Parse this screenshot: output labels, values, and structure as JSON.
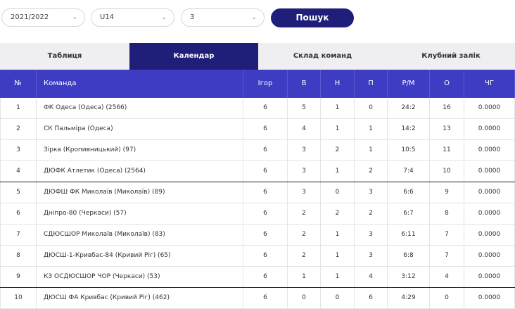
{
  "filters": {
    "season": "2021/2022",
    "age_group": "U14",
    "division": "3",
    "search_label": "Пошук"
  },
  "tabs": [
    {
      "label": "Таблиця",
      "active": false
    },
    {
      "label": "Календар",
      "active": true
    },
    {
      "label": "Склад команд",
      "active": false
    },
    {
      "label": "Клубний залік",
      "active": false
    }
  ],
  "table": {
    "columns": [
      "№",
      "Команда",
      "Ігор",
      "В",
      "Н",
      "П",
      "Р/М",
      "О",
      "ЧГ"
    ],
    "rows": [
      [
        "1",
        "ФК Одеса (Одеса) (2566)",
        "6",
        "5",
        "1",
        "0",
        "24:2",
        "16",
        "0.0000"
      ],
      [
        "2",
        "СК Пальміра (Одеса)",
        "6",
        "4",
        "1",
        "1",
        "14:2",
        "13",
        "0.0000"
      ],
      [
        "3",
        "Зірка (Кропивницький) (97)",
        "6",
        "3",
        "2",
        "1",
        "10:5",
        "11",
        "0.0000"
      ],
      [
        "4",
        "ДЮФК Атлетик (Одеса) (2564)",
        "6",
        "3",
        "1",
        "2",
        "7:4",
        "10",
        "0.0000"
      ],
      [
        "5",
        "ДЮФШ ФК Миколаїв (Миколаїв) (89)",
        "6",
        "3",
        "0",
        "3",
        "6:6",
        "9",
        "0.0000"
      ],
      [
        "6",
        "Дніпро-80 (Черкаси) (57)",
        "6",
        "2",
        "2",
        "2",
        "6:7",
        "8",
        "0.0000"
      ],
      [
        "7",
        "СДЮСШОР Миколаїв (Миколаїв) (83)",
        "6",
        "2",
        "1",
        "3",
        "6:11",
        "7",
        "0.0000"
      ],
      [
        "8",
        "ДЮСШ-1-Кривбас-84 (Кривий Ріг) (65)",
        "6",
        "2",
        "1",
        "3",
        "6:8",
        "7",
        "0.0000"
      ],
      [
        "9",
        "КЗ ОСДЮСШОР ЧОР (Черкаси) (53)",
        "6",
        "1",
        "1",
        "4",
        "3:12",
        "4",
        "0.0000"
      ],
      [
        "10",
        "ДЮСШ ФА Кривбас (Кривий Ріг) (462)",
        "6",
        "0",
        "0",
        "6",
        "4:29",
        "0",
        "0.0000"
      ]
    ]
  }
}
